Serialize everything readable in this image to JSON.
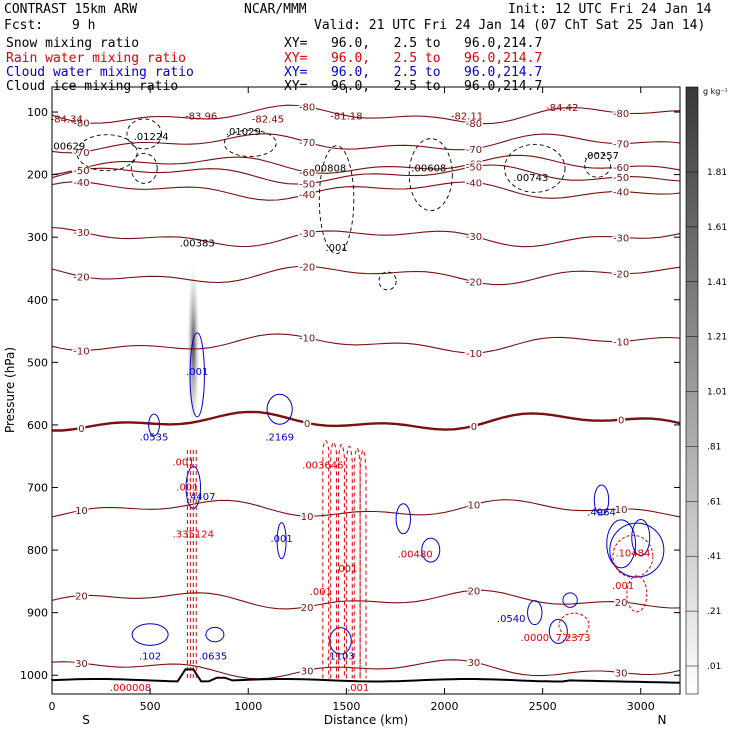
{
  "header": {
    "model": "CONTRAST 15km ARW",
    "org": "NCAR/MMM",
    "init": "Init: 12 UTC Fri 24 Jan 14",
    "fcst_label": "Fcst:",
    "fcst_value": "9 h",
    "valid": "Valid: 21 UTC Fri 24 Jan 14 (07 ChT Sat 25 Jan 14)",
    "fields": [
      {
        "name": "Snow mixing ratio",
        "color": "#000000",
        "xy": "XY=   96.0,   2.5 to   96.0,214.7"
      },
      {
        "name": "Rain water mixing ratio",
        "color": "#e00000",
        "xy": "XY=   96.0,   2.5 to   96.0,214.7"
      },
      {
        "name": "Cloud water mixing ratio",
        "color": "#0000d0",
        "xy": "XY=   96.0,   2.5 to   96.0,214.7"
      },
      {
        "name": "Cloud ice mixing ratio",
        "color": "#000000",
        "xy": "XY=   96.0,   2.5 to   96.0,214.7"
      }
    ]
  },
  "chart_data": {
    "type": "cross-section",
    "xlabel": "Distance (km)",
    "ylabel": "Pressure (hPa)",
    "xlim": [
      0,
      3200
    ],
    "ylim": [
      1030,
      60
    ],
    "x_ticks": [
      0,
      500,
      1000,
      1500,
      2000,
      2500,
      3000
    ],
    "y_ticks": [
      100,
      200,
      300,
      400,
      500,
      600,
      700,
      800,
      900,
      1000
    ],
    "x_end_labels": {
      "left": "S",
      "right": "N"
    },
    "colorbar": {
      "unit_label": "g kg⁻¹",
      "ticks": [
        ".01",
        ".21",
        ".41",
        ".61",
        ".81",
        "1.01",
        "1.21",
        "1.41",
        "1.61",
        "1.81"
      ]
    },
    "temperature_isotherms": [
      {
        "label": "-80",
        "p": 105
      },
      {
        "label": "-70",
        "p": 150
      },
      {
        "label": "-60",
        "p": 185
      },
      {
        "label": "-50",
        "p": 200
      },
      {
        "label": "-40",
        "p": 225
      },
      {
        "label": "-30",
        "p": 300
      },
      {
        "label": "-20",
        "p": 360
      },
      {
        "label": "-10",
        "p": 470
      },
      {
        "label": "0",
        "p": 595
      },
      {
        "label": "10",
        "p": 735
      },
      {
        "label": "20",
        "p": 880
      },
      {
        "label": "30",
        "p": 990
      }
    ],
    "maxima_labels": [
      {
        "text": "-84.34",
        "x": 75,
        "p": 117,
        "color": "#8b0000"
      },
      {
        "text": "-83.96",
        "x": 760,
        "p": 112,
        "color": "#8b0000"
      },
      {
        "text": "-82.45",
        "x": 1100,
        "p": 117,
        "color": "#8b0000"
      },
      {
        "text": "-81.18",
        "x": 1500,
        "p": 112,
        "color": "#8b0000"
      },
      {
        "text": "-82.11",
        "x": 2115,
        "p": 112,
        "color": "#8b0000"
      },
      {
        "text": "-84.42",
        "x": 2600,
        "p": 98,
        "color": "#8b0000"
      },
      {
        "text": ".00629",
        "x": 80,
        "p": 160,
        "color": "#000000"
      },
      {
        "text": ".01224",
        "x": 505,
        "p": 145,
        "color": "#000000"
      },
      {
        "text": ".01029",
        "x": 975,
        "p": 137,
        "color": "#000000"
      },
      {
        "text": ".00808",
        "x": 1410,
        "p": 195,
        "color": "#000000"
      },
      {
        "text": ".00608",
        "x": 1920,
        "p": 195,
        "color": "#000000"
      },
      {
        "text": ".00743",
        "x": 2440,
        "p": 210,
        "color": "#000000"
      },
      {
        "text": ".00257",
        "x": 2800,
        "p": 175,
        "color": "#000000"
      },
      {
        "text": ".00383",
        "x": 740,
        "p": 315,
        "color": "#000000"
      },
      {
        "text": ".001",
        "x": 1450,
        "p": 322,
        "color": "#000000"
      },
      {
        "text": ".001",
        "x": 740,
        "p": 520,
        "color": "#0000d0"
      },
      {
        "text": ".0535",
        "x": 520,
        "p": 625,
        "color": "#0000d0"
      },
      {
        "text": ".2169",
        "x": 1160,
        "p": 625,
        "color": "#0000d0"
      },
      {
        "text": ".001",
        "x": 670,
        "p": 665,
        "color": "#e00000"
      },
      {
        "text": ".003646",
        "x": 1380,
        "p": 670,
        "color": "#e00000"
      },
      {
        "text": ".001",
        "x": 690,
        "p": 705,
        "color": "#e00000"
      },
      {
        "text": ".4407",
        "x": 760,
        "p": 720,
        "color": "#0000d0"
      },
      {
        "text": ".335124",
        "x": 720,
        "p": 780,
        "color": "#e00000"
      },
      {
        "text": ".001",
        "x": 1170,
        "p": 787,
        "color": "#0000d0"
      },
      {
        "text": ".00480",
        "x": 1850,
        "p": 812,
        "color": "#e00000"
      },
      {
        "text": ".001",
        "x": 1500,
        "p": 835,
        "color": "#e00000"
      },
      {
        "text": ".001",
        "x": 1370,
        "p": 872,
        "color": "#e00000"
      },
      {
        "text": ".4964",
        "x": 2800,
        "p": 745,
        "color": "#0000d0"
      },
      {
        "text": ".10484",
        "x": 2960,
        "p": 810,
        "color": "#e00000"
      },
      {
        "text": ".001",
        "x": 2910,
        "p": 862,
        "color": "#e00000"
      },
      {
        "text": ".0540",
        "x": 2340,
        "p": 915,
        "color": "#0000d0"
      },
      {
        "text": ".0000",
        "x": 2460,
        "p": 945,
        "color": "#e00000"
      },
      {
        "text": "7.2373",
        "x": 2655,
        "p": 945,
        "color": "#e00000"
      },
      {
        "text": ".102",
        "x": 500,
        "p": 975,
        "color": "#0000d0"
      },
      {
        "text": ".0635",
        "x": 820,
        "p": 975,
        "color": "#0000d0"
      },
      {
        "text": ".1103",
        "x": 1470,
        "p": 975,
        "color": "#0000d0"
      },
      {
        "text": ".000008",
        "x": 400,
        "p": 1025,
        "color": "#e00000"
      },
      {
        "text": ".001",
        "x": 1560,
        "p": 1025,
        "color": "#e00000"
      }
    ]
  }
}
